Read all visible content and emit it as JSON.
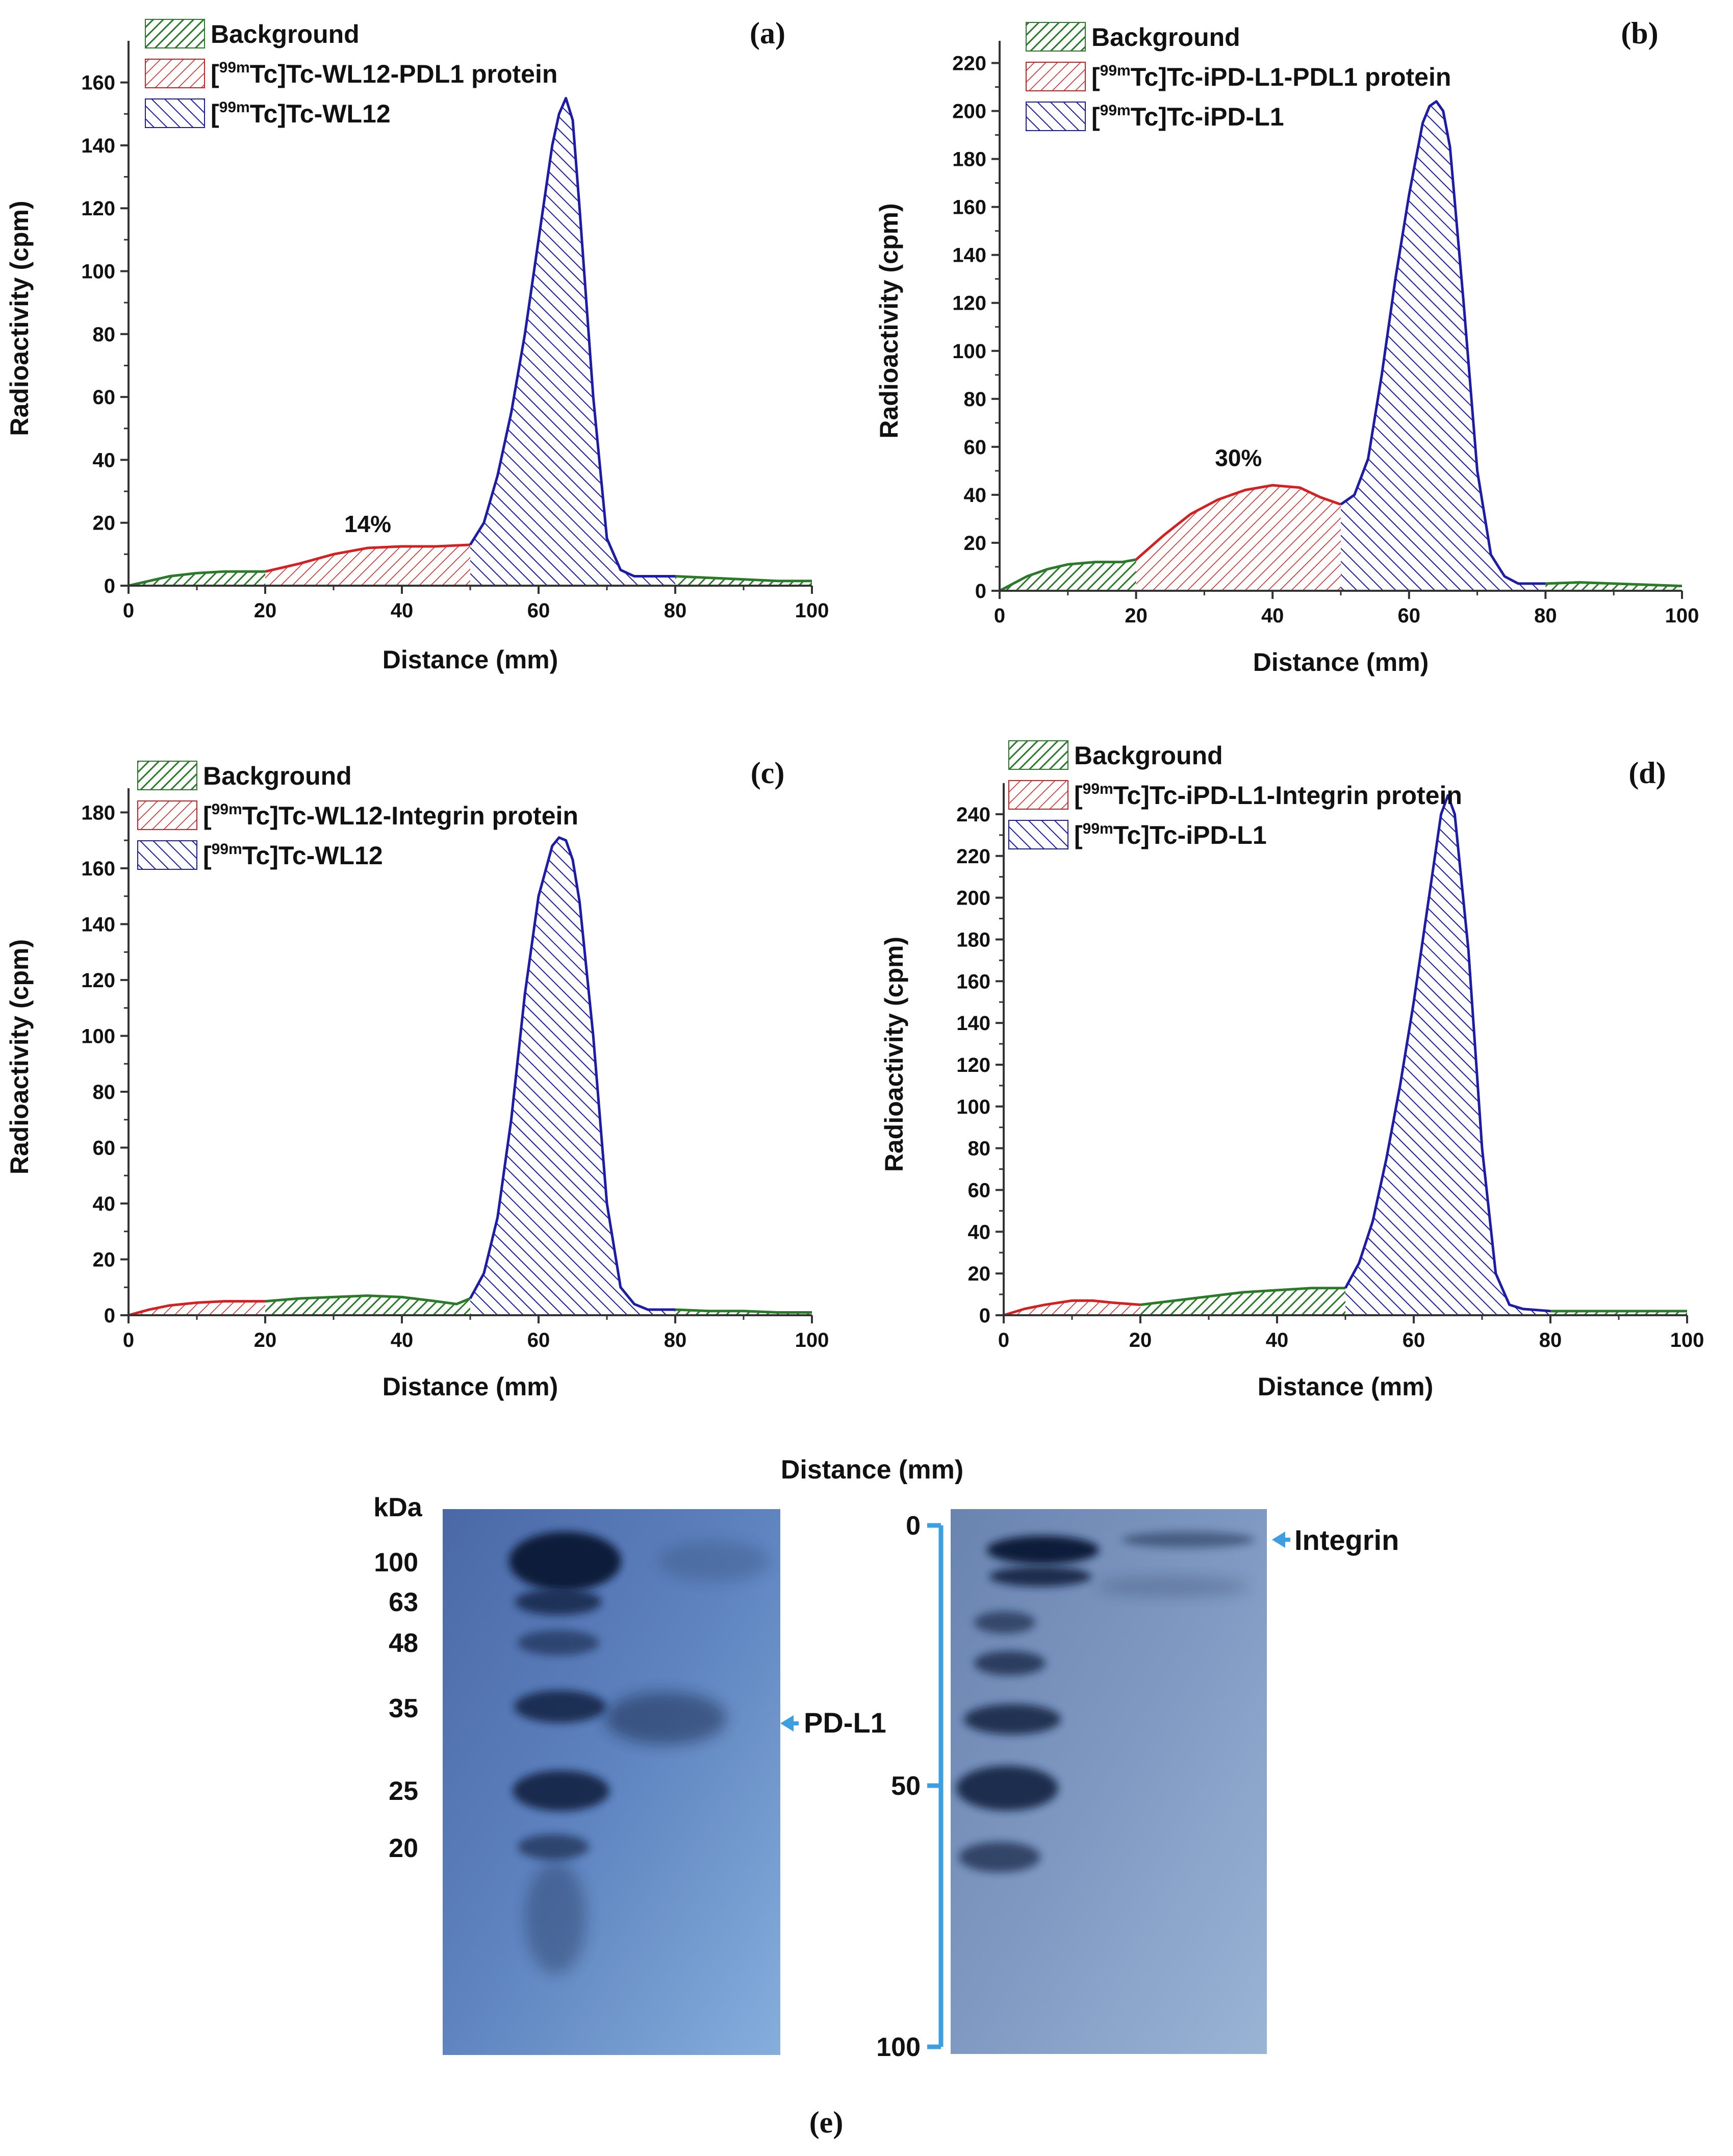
{
  "colors": {
    "background": "#2a7a2a",
    "protein": "#d42020",
    "free": "#1c1ca8",
    "gel_bracket": "#3d9ee0",
    "arrow": "#3d9ee0"
  },
  "chart_data": [
    {
      "panel": "(a)",
      "type": "area",
      "xlabel": "Distance (mm)",
      "ylabel": "Radioactivity (cpm)",
      "xlim": [
        0,
        100
      ],
      "ylim": [
        0,
        170
      ],
      "xticks": [
        0,
        20,
        40,
        60,
        80,
        100
      ],
      "yticks": [
        0,
        20,
        40,
        60,
        80,
        100,
        120,
        140,
        160
      ],
      "legend": [
        {
          "pre": "",
          "sup": "",
          "text": "Background",
          "series": "background"
        },
        {
          "pre": "[",
          "sup": "99m",
          "text": "Tc]Tc-WL12-PDL1 protein",
          "series": "protein"
        },
        {
          "pre": "[",
          "sup": "99m",
          "text": "Tc]Tc-WL12",
          "series": "free"
        }
      ],
      "annotation": {
        "text": "14%",
        "x": 35,
        "y": 17
      },
      "segments": [
        {
          "series": "background",
          "x": [
            0,
            3,
            6,
            10,
            14,
            18,
            20
          ],
          "y": [
            0,
            1.5,
            3,
            4,
            4.5,
            4.5,
            4.5
          ]
        },
        {
          "series": "protein",
          "x": [
            20,
            25,
            30,
            35,
            40,
            45,
            50
          ],
          "y": [
            4.5,
            7,
            10,
            12,
            12.5,
            12.5,
            13
          ]
        },
        {
          "series": "free",
          "x": [
            50,
            52,
            54,
            56,
            58,
            60,
            62,
            63,
            64,
            65,
            66,
            68,
            70,
            72,
            74,
            76,
            80
          ],
          "y": [
            13,
            20,
            35,
            55,
            80,
            110,
            140,
            150,
            155,
            148,
            120,
            60,
            15,
            5,
            3,
            3,
            3
          ]
        },
        {
          "series": "background",
          "x": [
            80,
            85,
            90,
            95,
            100
          ],
          "y": [
            3,
            2.5,
            2,
            1.5,
            1.5
          ]
        }
      ]
    },
    {
      "panel": "(b)",
      "type": "area",
      "xlabel": "Distance (mm)",
      "ylabel": "Radioactivity (cpm)",
      "xlim": [
        0,
        100
      ],
      "ylim": [
        0,
        225
      ],
      "xticks": [
        0,
        20,
        40,
        60,
        80,
        100
      ],
      "yticks": [
        0,
        20,
        40,
        60,
        80,
        100,
        120,
        140,
        160,
        180,
        200,
        220
      ],
      "legend": [
        {
          "pre": "",
          "sup": "",
          "text": "Background",
          "series": "background"
        },
        {
          "pre": "[",
          "sup": "99m",
          "text": "Tc]Tc-iPD-L1-PDL1 protein",
          "series": "protein"
        },
        {
          "pre": "[",
          "sup": "99m",
          "text": "Tc]Tc-iPD-L1",
          "series": "free"
        }
      ],
      "annotation": {
        "text": "30%",
        "x": 35,
        "y": 52
      },
      "segments": [
        {
          "series": "background",
          "x": [
            0,
            2,
            4,
            7,
            10,
            14,
            18,
            20
          ],
          "y": [
            0,
            3,
            6,
            9,
            11,
            12,
            12,
            13
          ]
        },
        {
          "series": "protein",
          "x": [
            20,
            24,
            28,
            32,
            36,
            40,
            44,
            47,
            50
          ],
          "y": [
            13,
            23,
            32,
            38,
            42,
            44,
            43,
            39,
            36
          ]
        },
        {
          "series": "free",
          "x": [
            50,
            52,
            54,
            56,
            58,
            60,
            62,
            63,
            64,
            65,
            66,
            68,
            70,
            72,
            74,
            76,
            80
          ],
          "y": [
            36,
            40,
            55,
            90,
            130,
            165,
            195,
            202,
            204,
            200,
            185,
            120,
            50,
            15,
            6,
            3,
            3
          ]
        },
        {
          "series": "background",
          "x": [
            80,
            85,
            90,
            95,
            100
          ],
          "y": [
            3,
            3.5,
            3,
            2.5,
            2
          ]
        }
      ]
    },
    {
      "panel": "(c)",
      "type": "area",
      "xlabel": "Distance (mm)",
      "ylabel": "Radioactivity (cpm)",
      "xlim": [
        0,
        100
      ],
      "ylim": [
        0,
        185
      ],
      "xticks": [
        0,
        20,
        40,
        60,
        80,
        100
      ],
      "yticks": [
        0,
        20,
        40,
        60,
        80,
        100,
        120,
        140,
        160,
        180
      ],
      "legend": [
        {
          "pre": "",
          "sup": "",
          "text": "Background",
          "series": "background"
        },
        {
          "pre": "[",
          "sup": "99m",
          "text": "Tc]Tc-WL12-Integrin protein",
          "series": "protein"
        },
        {
          "pre": "[",
          "sup": "99m",
          "text": "Tc]Tc-WL12",
          "series": "free"
        }
      ],
      "annotation": null,
      "segments": [
        {
          "series": "protein",
          "x": [
            0,
            3,
            6,
            10,
            14,
            18,
            20
          ],
          "y": [
            0,
            2,
            3.5,
            4.5,
            5,
            5,
            5
          ]
        },
        {
          "series": "background",
          "x": [
            20,
            25,
            30,
            35,
            40,
            45,
            48,
            50
          ],
          "y": [
            5,
            6,
            6.5,
            7,
            6.5,
            5,
            4,
            6
          ]
        },
        {
          "series": "free",
          "x": [
            50,
            52,
            54,
            56,
            58,
            60,
            62,
            63,
            64,
            65,
            66,
            68,
            70,
            72,
            74,
            76,
            80
          ],
          "y": [
            6,
            15,
            35,
            70,
            115,
            150,
            168,
            171,
            170,
            163,
            148,
            100,
            40,
            10,
            4,
            2,
            2
          ]
        },
        {
          "series": "background",
          "x": [
            80,
            85,
            90,
            95,
            100
          ],
          "y": [
            2,
            1.5,
            1.5,
            1,
            1
          ]
        }
      ]
    },
    {
      "panel": "(d)",
      "type": "area",
      "xlabel": "Distance (mm)",
      "ylabel": "Radioactivity (cpm)",
      "xlim": [
        0,
        100
      ],
      "ylim": [
        0,
        250
      ],
      "xticks": [
        0,
        20,
        40,
        60,
        80,
        100
      ],
      "yticks": [
        0,
        20,
        40,
        60,
        80,
        100,
        120,
        140,
        160,
        180,
        200,
        220,
        240
      ],
      "legend": [
        {
          "pre": "",
          "sup": "",
          "text": "Background",
          "series": "background"
        },
        {
          "pre": "[",
          "sup": "99m",
          "text": "Tc]Tc-iPD-L1-Integrin protein",
          "series": "protein"
        },
        {
          "pre": "[",
          "sup": "99m",
          "text": "Tc]Tc-iPD-L1",
          "series": "free"
        }
      ],
      "annotation": null,
      "segments": [
        {
          "series": "protein",
          "x": [
            0,
            3,
            6,
            10,
            13,
            16,
            20
          ],
          "y": [
            0,
            3,
            5,
            7,
            7,
            6,
            5
          ]
        },
        {
          "series": "background",
          "x": [
            20,
            25,
            30,
            35,
            40,
            45,
            50
          ],
          "y": [
            5,
            7,
            9,
            11,
            12,
            13,
            13
          ]
        },
        {
          "series": "free",
          "x": [
            50,
            52,
            54,
            56,
            58,
            60,
            62,
            64,
            65,
            66,
            68,
            70,
            72,
            74,
            76,
            80
          ],
          "y": [
            13,
            25,
            45,
            75,
            110,
            150,
            195,
            240,
            249,
            240,
            175,
            80,
            20,
            5,
            3,
            2
          ]
        },
        {
          "series": "background",
          "x": [
            80,
            85,
            90,
            95,
            100
          ],
          "y": [
            2,
            2,
            2,
            2,
            2
          ]
        }
      ]
    }
  ],
  "gel": {
    "panel": "(e)",
    "distance_title": "Distance (mm)",
    "kda_title": "kDa",
    "kda_ticks": [
      "100",
      "63",
      "48",
      "35",
      "25",
      "20"
    ],
    "pdl1_label": "PD-L1",
    "integrin_label": "Integrin",
    "distance_ticks": [
      "0",
      "50",
      "100"
    ]
  }
}
